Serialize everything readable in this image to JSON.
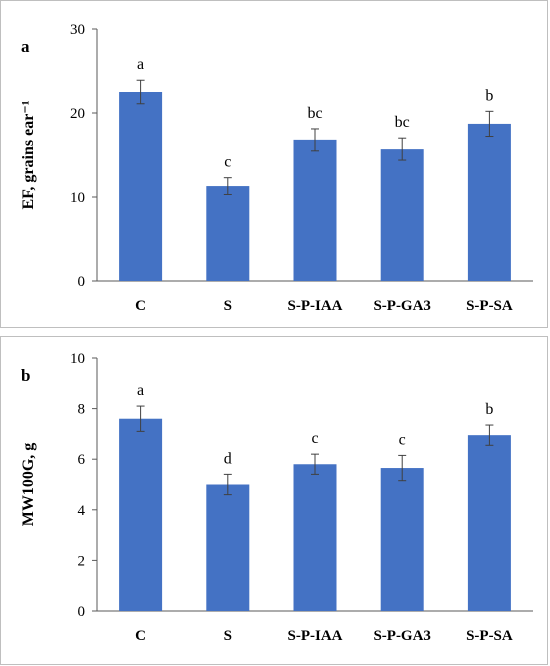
{
  "chart_data": [
    {
      "type": "bar",
      "panel_label": "a",
      "ylabel": "EF, grains ear⁻¹",
      "categories": [
        "C",
        "S",
        "S-P-IAA",
        "S-P-GA3",
        "S-P-SA"
      ],
      "values": [
        22.5,
        11.3,
        16.8,
        15.7,
        18.7
      ],
      "errors": [
        1.4,
        1.0,
        1.3,
        1.3,
        1.5
      ],
      "significance": [
        "a",
        "c",
        "bc",
        "bc",
        "b"
      ],
      "ylim": [
        0,
        30
      ],
      "yticks": [
        0,
        10,
        20,
        30
      ],
      "bar_color": "#4472c4",
      "grid": false
    },
    {
      "type": "bar",
      "panel_label": "b",
      "ylabel": "MW100G, g",
      "categories": [
        "C",
        "S",
        "S-P-IAA",
        "S-P-GA3",
        "S-P-SA"
      ],
      "values": [
        7.6,
        5.0,
        5.8,
        5.65,
        6.95
      ],
      "errors": [
        0.5,
        0.4,
        0.4,
        0.5,
        0.4
      ],
      "significance": [
        "a",
        "d",
        "c",
        "c",
        "b"
      ],
      "ylim": [
        0,
        10
      ],
      "yticks": [
        0,
        2,
        4,
        6,
        8,
        10
      ],
      "bar_color": "#4472c4",
      "grid": false
    }
  ]
}
